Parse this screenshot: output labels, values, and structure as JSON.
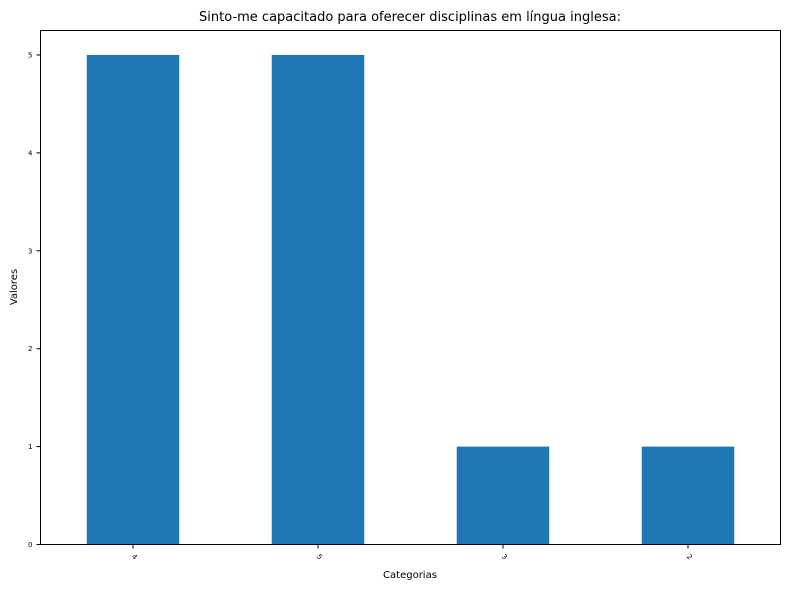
{
  "chart_data": {
    "type": "bar",
    "title": "Sinto-me capacitado para oferecer disciplinas em língua inglesa:",
    "xlabel": "Categorias",
    "ylabel": "Valores",
    "categories": [
      "4",
      "5",
      "3",
      "2"
    ],
    "values": [
      5,
      5,
      1,
      1
    ],
    "ylim": [
      0,
      5.25
    ],
    "yticks": [
      0,
      1,
      2,
      3,
      4,
      5
    ],
    "xtick_rotation": 45,
    "bar_color": "#1f77b4",
    "grid": false,
    "legend": "none"
  }
}
